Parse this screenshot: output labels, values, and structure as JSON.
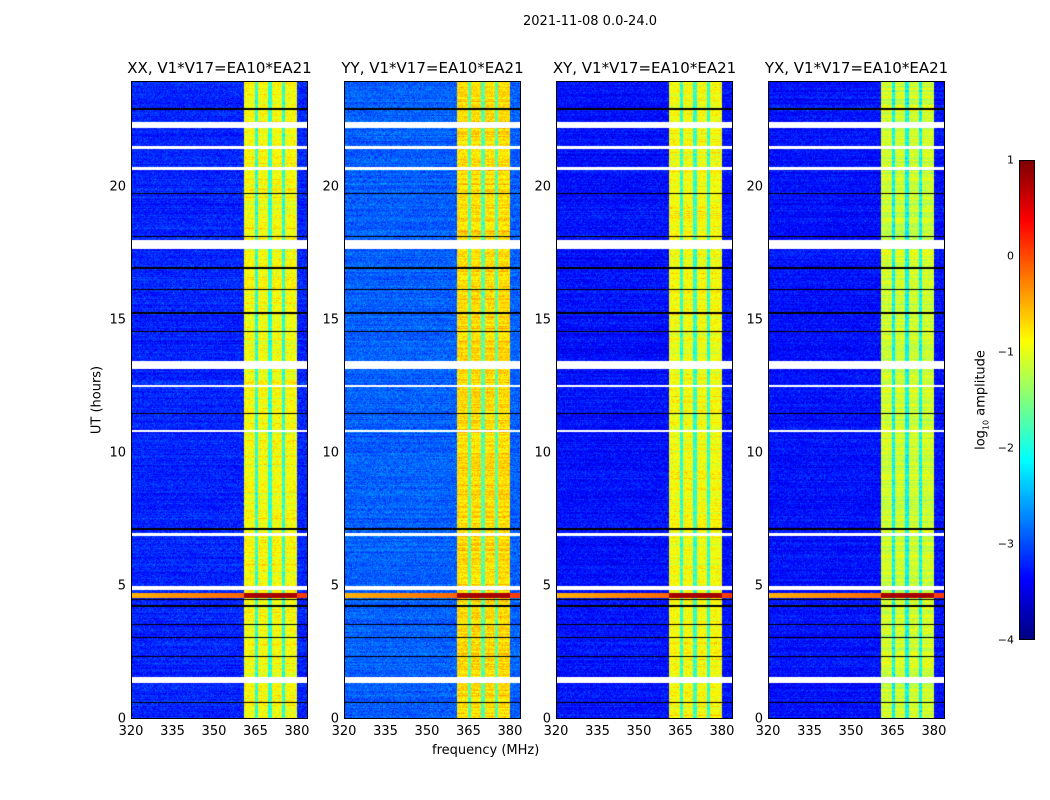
{
  "chart_data": {
    "type": "heatmap",
    "title": "2021-11-08 0.0-24.0",
    "xlabel": "frequency (MHz)",
    "ylabel": "UT (hours)",
    "xlim": [
      320,
      384
    ],
    "ylim": [
      0,
      24
    ],
    "xticks": [
      "320",
      "335",
      "350",
      "365",
      "380"
    ],
    "xtick_values": [
      320,
      335,
      350,
      365,
      380
    ],
    "yticks": [
      "0",
      "5",
      "10",
      "15",
      "20"
    ],
    "ytick_values": [
      0,
      5,
      10,
      15,
      20
    ],
    "panels": [
      {
        "title": "XX, V1*V17=EA10*EA21",
        "background_level": -3.2,
        "band_level": -0.9
      },
      {
        "title": "YY, V1*V17=EA10*EA21",
        "background_level": -2.9,
        "band_level": -0.7
      },
      {
        "title": "XY, V1*V17=EA10*EA21",
        "background_level": -3.3,
        "band_level": -0.9
      },
      {
        "title": "YX, V1*V17=EA10*EA21",
        "background_level": -3.3,
        "band_level": -1.1
      }
    ],
    "band_mhz": [
      360.7,
      380.2
    ],
    "band_dips_mhz": [
      365.3,
      370.3,
      375.3
    ],
    "flagged_hours_white": [
      [
        1.35,
        1.55
      ],
      [
        4.85,
        5.0
      ],
      [
        6.9,
        7.0
      ],
      [
        10.8,
        10.9
      ],
      [
        12.5,
        12.6
      ],
      [
        13.2,
        13.5
      ],
      [
        17.7,
        18.05
      ],
      [
        20.7,
        20.8
      ],
      [
        21.5,
        21.6
      ],
      [
        22.3,
        22.5
      ]
    ],
    "dark_line_hours": [
      0.6,
      2.35,
      3.05,
      3.55,
      4.25,
      4.5,
      7.15,
      11.5,
      14.6,
      15.3,
      16.2,
      17.0,
      18.2,
      19.8,
      23.0
    ],
    "rfi_event_hours": [
      4.55,
      4.75
    ],
    "colorbar": {
      "label": "log",
      "label_sub": "10",
      "label_rest": " amplitude",
      "range": [
        -4,
        1
      ],
      "ticks": [
        "1",
        "0",
        "−1",
        "−2",
        "−3",
        "−4"
      ],
      "tick_values": [
        1,
        0,
        -1,
        -2,
        -3,
        -4
      ],
      "colormap": "jet"
    }
  }
}
